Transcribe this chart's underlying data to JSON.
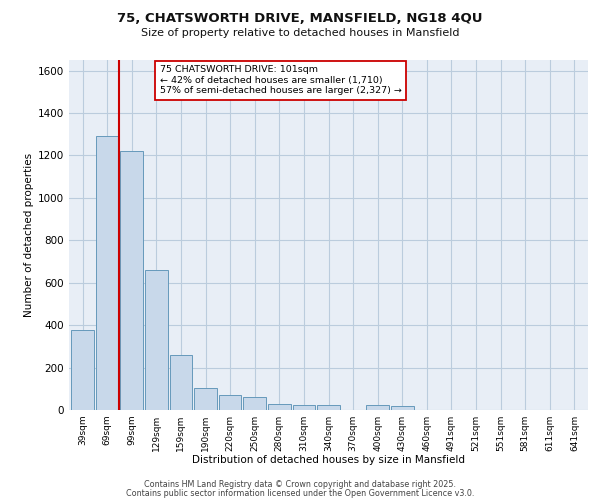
{
  "title_line1": "75, CHATSWORTH DRIVE, MANSFIELD, NG18 4QU",
  "title_line2": "Size of property relative to detached houses in Mansfield",
  "xlabel": "Distribution of detached houses by size in Mansfield",
  "ylabel": "Number of detached properties",
  "categories": [
    "39sqm",
    "69sqm",
    "99sqm",
    "129sqm",
    "159sqm",
    "190sqm",
    "220sqm",
    "250sqm",
    "280sqm",
    "310sqm",
    "340sqm",
    "370sqm",
    "400sqm",
    "430sqm",
    "460sqm",
    "491sqm",
    "521sqm",
    "551sqm",
    "581sqm",
    "611sqm",
    "641sqm"
  ],
  "values": [
    375,
    1290,
    1220,
    660,
    260,
    105,
    70,
    60,
    30,
    25,
    25,
    0,
    25,
    20,
    0,
    0,
    0,
    0,
    0,
    0,
    0
  ],
  "bar_color": "#c8d8ea",
  "bar_edge_color": "#6699bb",
  "vline_x": 1.5,
  "vline_color": "#cc0000",
  "ylim": [
    0,
    1650
  ],
  "yticks": [
    0,
    200,
    400,
    600,
    800,
    1000,
    1200,
    1400,
    1600
  ],
  "grid_color": "#bbccdd",
  "bg_color": "#e8eef6",
  "annotation_title": "75 CHATSWORTH DRIVE: 101sqm",
  "annotation_line2": "← 42% of detached houses are smaller (1,710)",
  "annotation_line3": "57% of semi-detached houses are larger (2,327) →",
  "annotation_box_facecolor": "#ffffff",
  "annotation_edge_color": "#cc0000",
  "footer_line1": "Contains HM Land Registry data © Crown copyright and database right 2025.",
  "footer_line2": "Contains public sector information licensed under the Open Government Licence v3.0."
}
